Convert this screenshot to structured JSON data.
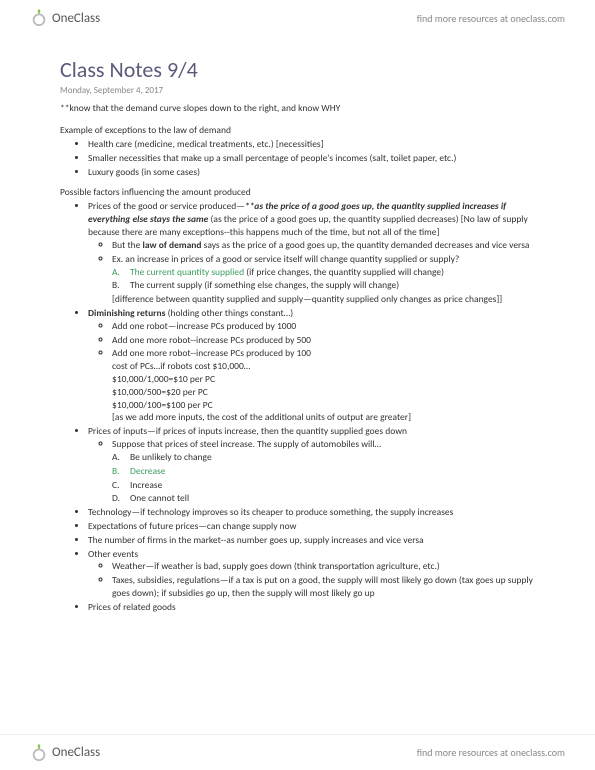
{
  "brand": {
    "name": "OneClass",
    "tagline_prefix": "find more resources at ",
    "tagline_link": "oneclass.com"
  },
  "logo": {
    "leaf_color": "#8bc34a",
    "ring_color": "#bbb"
  },
  "doc": {
    "title": "Class Notes 9/4",
    "date": "Monday, September 4, 2017",
    "intro": "**know that the demand curve slopes down to the right, and know WHY",
    "section1_head": "Example of exceptions to the law of demand",
    "s1": [
      "Health care (medicine, medical treatments, etc.) [necessities]",
      "Smaller necessities that make up a small percentage of people's incomes (salt, toilet paper, etc.)",
      "Luxury goods (in some cases)"
    ],
    "section2_head": "Possible factors influencing the amount produced",
    "prices_good_lead": "Prices of the good or service produced—",
    "prices_good_emph": "**as the price of a good goes up, the quantity supplied increases if everything else stays the same",
    "prices_good_tail": " (as the price of a good goes up, the quantity supplied decreases) [No law of supply because there are many exceptions--this happens much of the time, but not all of the time]",
    "law_demand_pre": "But the ",
    "law_demand_bold": "law of demand",
    "law_demand_post": " says as the price of a good goes up, the quantity demanded decreases and vice versa",
    "ex_question": "Ex. an increase in prices of a good or service itself will change quantity supplied or supply?",
    "ex_a_letter": "A.",
    "ex_a_text": "The current quantity supplied",
    "ex_a_paren": " (if price changes, the quantity supplied will change)",
    "ex_b_letter": "B.",
    "ex_b_text": "The current supply (if something else changes, the supply will change)",
    "ex_diff": "[difference between quantity supplied and supply—quantity supplied only changes as price changes]]",
    "dim_bold": "Diminishing returns",
    "dim_tail": " (holding other things constant…)",
    "dim_items": [
      "Add one robot—increase PCs produced by 1000",
      "Add one more robot--increase PCs produced by 500",
      "Add one more robot--increase PCs produced by 100",
      "cost of PCs…if robots cost $10,000…",
      "$10,000/1,000=$10 per PC",
      "$10,000/500=$20 per PC",
      "$10,000/100=$100 per PC",
      "[as we add more inputs, the cost of the additional units of output are greater]"
    ],
    "inputs": "Prices of inputs—if prices of inputs increase, then the quantity supplied goes down",
    "steel_q": "Suppose that prices of steel increase. The supply of automobiles will…",
    "steel_opts": [
      {
        "letter": "A.",
        "text": "Be unlikely to change",
        "green": false
      },
      {
        "letter": "B.",
        "text": "Decrease",
        "green": true
      },
      {
        "letter": "C.",
        "text": "Increase",
        "green": false
      },
      {
        "letter": "D.",
        "text": "One cannot tell",
        "green": false
      }
    ],
    "tech": "Technology—if technology improves so its cheaper to produce something, the supply increases",
    "expect": "Expectations of future prices—can change supply now",
    "firms": "The number of firms in the market--as number goes up, supply increases and vice versa",
    "other": "Other events",
    "weather": "Weather—if weather is bad, supply goes down (think transportation agriculture, etc.)",
    "taxes": "Taxes, subsidies, regulations—if a tax is put on a good, the supply will most likely go down (tax goes up supply goes down); if subsidies go up, then the supply will most likely go up",
    "related": "Prices of related goods"
  }
}
